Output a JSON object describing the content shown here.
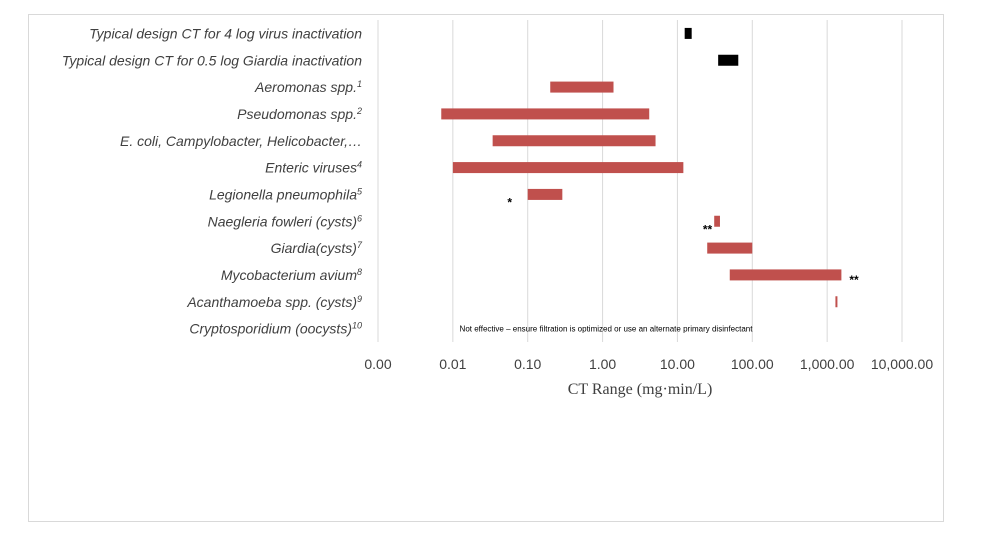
{
  "chart_data": {
    "type": "bar",
    "orientation": "horizontal-floating-range",
    "title": "",
    "xlabel": "CT Range (mg·min/L)",
    "ylabel": "",
    "x_scale": "log",
    "xlim": [
      0.001,
      10000
    ],
    "x_ticks": [
      0.001,
      0.01,
      0.1,
      1,
      10,
      100,
      1000,
      10000
    ],
    "x_tick_labels": [
      "0.00",
      "0.01",
      "0.10",
      "1.00",
      "10.00",
      "100.00",
      "1,000.00",
      "10,000.00"
    ],
    "grid": true,
    "colors": {
      "design": "#000000",
      "organism": "#c0504d"
    },
    "categories": [
      {
        "label": "Typical design CT for 4 log virus inactivation",
        "min": 12.5,
        "max": 15.5,
        "color": "#000000"
      },
      {
        "label": "Typical design CT for 0.5 log Giardia inactivation",
        "min": 35,
        "max": 65,
        "color": "#000000"
      },
      {
        "label": "Aeromonas spp.",
        "sup": "1",
        "min": 0.2,
        "max": 1.4,
        "color": "#c0504d"
      },
      {
        "label": "Pseudomonas spp.",
        "sup": "2",
        "min": 0.007,
        "max": 4.2,
        "color": "#c0504d"
      },
      {
        "label": "E. coli, Campylobacter, Helicobacter,…",
        "sup": "",
        "min": 0.034,
        "max": 5.1,
        "color": "#c0504d"
      },
      {
        "label": "Enteric viruses",
        "sup": "4",
        "min": 0.01,
        "max": 12,
        "color": "#c0504d"
      },
      {
        "label": "Legionella pneumophila",
        "sup": "5",
        "min": 0.1,
        "max": 0.29,
        "color": "#c0504d",
        "annotation": "*"
      },
      {
        "label": "Naegleria fowleri (cysts)",
        "sup": "6",
        "min": 31,
        "max": 37,
        "color": "#c0504d",
        "annotation": "**"
      },
      {
        "label": "Giardia(cysts)",
        "sup": "7",
        "min": 25,
        "max": 100,
        "color": "#c0504d"
      },
      {
        "label": "Mycobacterium avium",
        "sup": "8",
        "min": 50,
        "max": 1550,
        "color": "#c0504d",
        "annotation": "**"
      },
      {
        "label": "Acanthamoeba spp. (cysts)",
        "sup": "9",
        "min": 1290,
        "max": 1360,
        "color": "#c0504d"
      },
      {
        "label": "Cryptosporidium (oocysts)",
        "sup": "10",
        "min": null,
        "max": null,
        "color": "#c0504d",
        "note": "Not effective – ensure filtration is optimized or use an alternate primary disinfectant"
      }
    ]
  }
}
